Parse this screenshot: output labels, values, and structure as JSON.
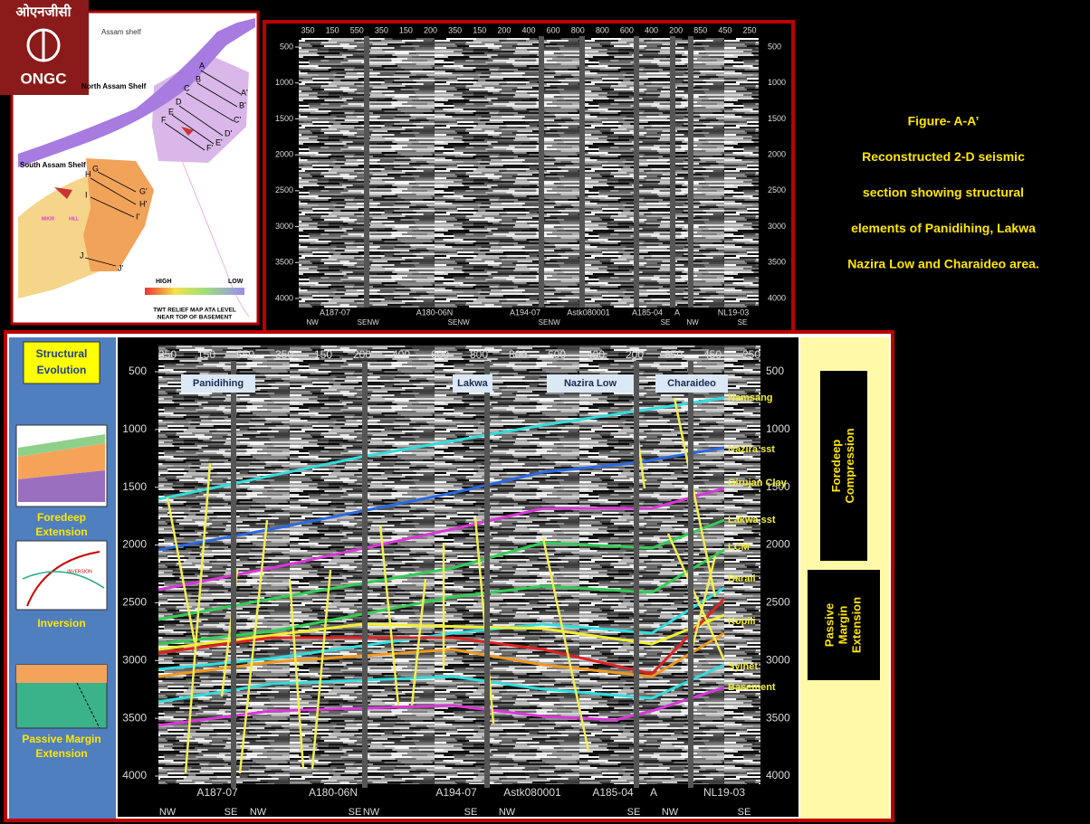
{
  "logo": {
    "hindi": "ओएनजीसी",
    "latin": "ONGC"
  },
  "map": {
    "labels": [
      "Assam shelf",
      "North Assam Shelf",
      "South Assam Shelf",
      "MIKIR",
      "HILL"
    ],
    "letters": [
      "A",
      "B",
      "C",
      "D",
      "E",
      "F",
      "G",
      "H",
      "I",
      "J",
      "A'",
      "B'",
      "C'",
      "D'",
      "E'",
      "F'",
      "G'",
      "H'",
      "I'",
      "J'"
    ],
    "legend": {
      "high": "HIGH",
      "low": "LOW",
      "caption_lines": [
        "TWT RELIEF MAP ATA LEVEL",
        "NEAR TOP OF BASEMENT"
      ]
    }
  },
  "caption": [
    "Figure- A-A’",
    "Reconstructed 2-D seismic",
    "section showing structural",
    "elements of   Panidihing, Lakwa",
    "Nazira Low and Charaideo area."
  ],
  "top_section": {
    "shotpoints": [
      "350",
      "150",
      "550",
      "350",
      "150",
      "200",
      "350",
      "150",
      "200",
      "400",
      "600",
      "800",
      "800",
      "600",
      "400",
      "200",
      "850",
      "450",
      "250"
    ],
    "depths": [
      500,
      1000,
      1500,
      2000,
      2500,
      3000,
      3500,
      4000
    ],
    "lines": [
      "A187-07",
      "A180-06N",
      "A194-07",
      "Astk080001",
      "A185-04",
      "A",
      "NL19-03"
    ],
    "directions": [
      "NW",
      "SE",
      "NW",
      "SE",
      "NW",
      "SE",
      "NW",
      "SE",
      "NW",
      "SE"
    ]
  },
  "bottom_section": {
    "evolution_title": [
      "Structural",
      "Evolution"
    ],
    "stages": [
      [
        "Foredeep",
        "Extension"
      ],
      [
        "Inversion"
      ],
      [
        "Passive Margin",
        "Extension"
      ]
    ],
    "stage_note": "INVERSION",
    "areas": [
      "Panidihing",
      "Lakwa",
      "Nazira Low",
      "Charaideo"
    ],
    "horizons": [
      "Namsang",
      "Nazira sst",
      "Girujan Clay",
      "Lakwa sst",
      "LCM",
      "Barail",
      "Kopili",
      "Sylhet",
      "Basement"
    ],
    "shotpoints": [
      "350",
      "150",
      "550",
      "350",
      "150",
      "200",
      "400",
      "600",
      "800",
      "800",
      "600",
      "400",
      "200",
      "850",
      "450",
      "250"
    ],
    "depths": [
      500,
      1000,
      1500,
      2000,
      2500,
      3000,
      3500,
      4000
    ],
    "lines": [
      "A187-07",
      "A180-06N",
      "A194-07",
      "Astk080001",
      "A185-04",
      "A",
      "NL19-03"
    ],
    "directions": [
      "NW",
      "SE",
      "NW",
      "SE",
      "NW",
      "SE",
      "NW",
      "SE",
      "NW",
      "SE"
    ],
    "regimes": [
      [
        "Foredeep",
        "Compression"
      ],
      [
        "Passive",
        "Margin",
        "Extension"
      ]
    ]
  }
}
